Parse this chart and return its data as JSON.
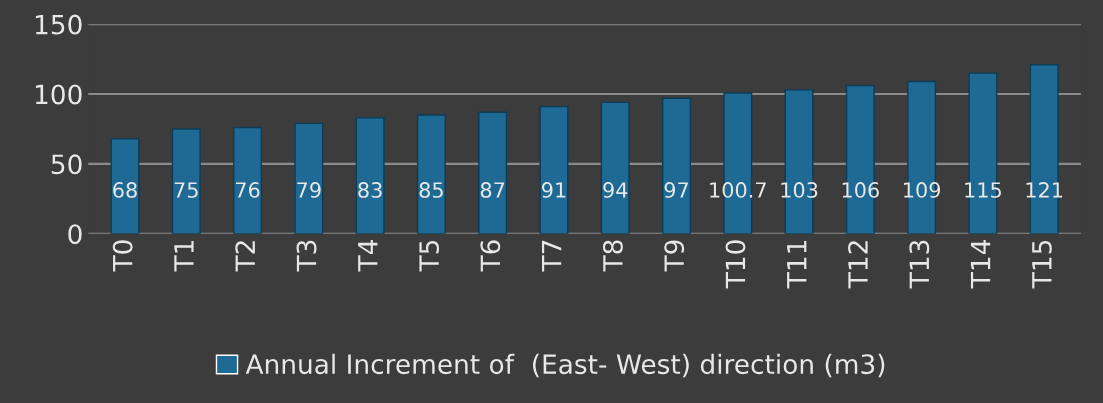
{
  "chart_data": {
    "type": "bar",
    "categories": [
      "T0",
      "T1",
      "T2",
      "T3",
      "T4",
      "T5",
      "T6",
      "T7",
      "T8",
      "T9",
      "T10",
      "T11",
      "T12",
      "T13",
      "T14",
      "T15"
    ],
    "series": [
      {
        "name": "Annual Increment of  (East- West) direction (m3)",
        "color": "#1f6a94",
        "values": [
          68,
          75,
          76,
          79,
          83,
          85,
          87,
          91,
          94,
          97,
          100.7,
          103,
          106,
          109,
          115,
          121
        ]
      }
    ],
    "ylim": [
      0,
      150
    ],
    "yticks": [
      0,
      50,
      100,
      150
    ],
    "grid": "y",
    "legend": "bottom",
    "data_labels": true
  }
}
